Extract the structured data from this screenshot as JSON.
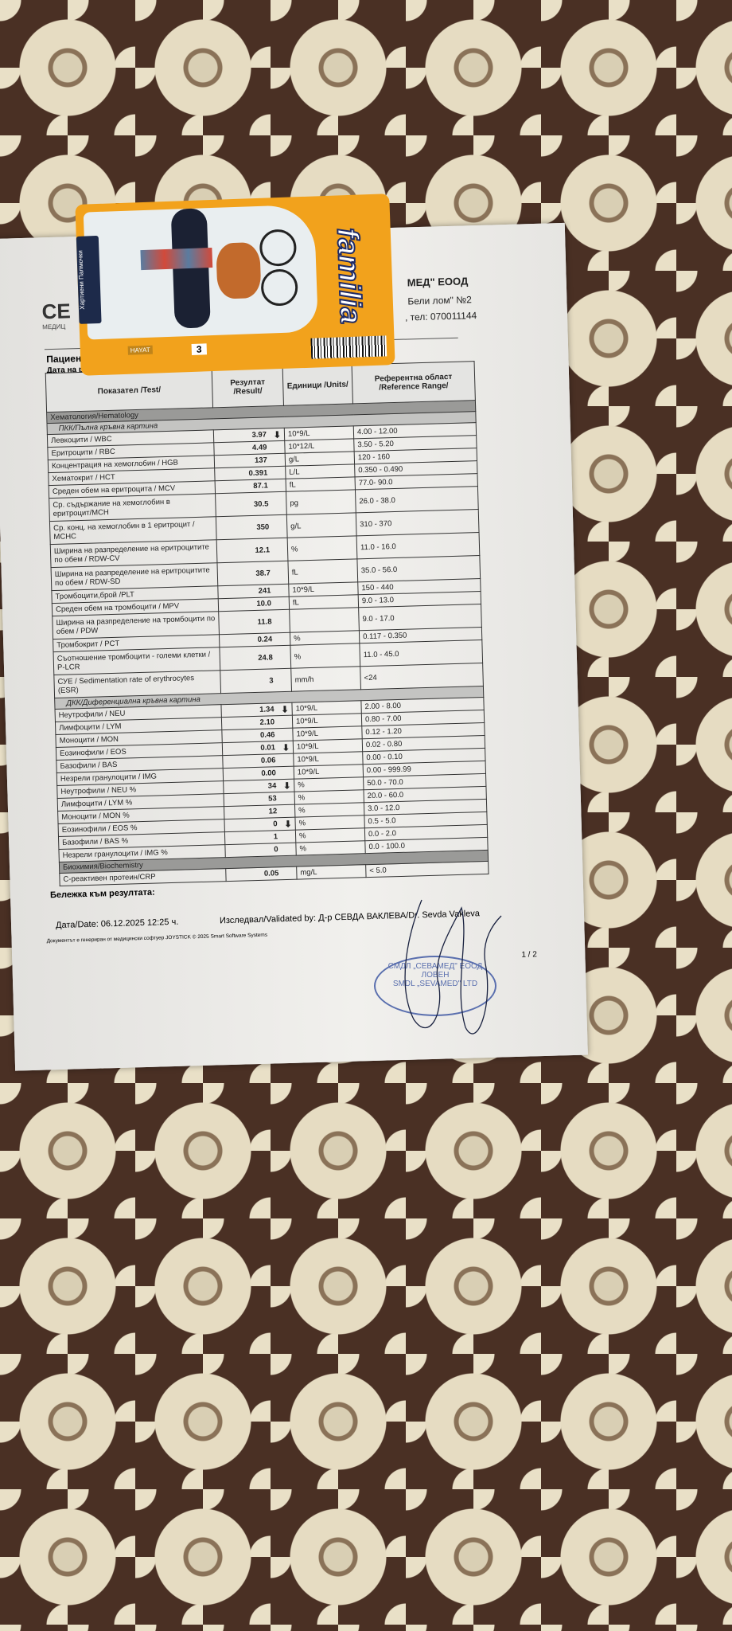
{
  "header": {
    "logo": "СЕ",
    "logo_sub": "МЕДИЦ",
    "company": "МЕД\" ЕООД",
    "address": "Бели лом\" №2",
    "phone": ", тел: 070011144",
    "patient_label": "Пациент",
    "date_label": "Дата на ра"
  },
  "tissue": {
    "brand": "familia",
    "maker": "HAYAT",
    "count": "3",
    "side_text": "Хартиени Палмочки"
  },
  "table": {
    "headers": {
      "test": "Показател /Test/",
      "result": "Резултат /Result/",
      "units": "Единици /Units/",
      "ref": "Референтна област /Reference Range/"
    },
    "sections": [
      {
        "title": "Хематология/Hematology",
        "groups": [
          {
            "title": "ПКК/Пълна кръвна картина",
            "rows": [
              {
                "test": "Левкоцити / WBC",
                "result": "3.97",
                "flag": "low",
                "units": "10*9/L",
                "ref": "4.00 - 12.00"
              },
              {
                "test": "Еритроцити / RBC",
                "result": "4.49",
                "flag": "",
                "units": "10*12/L",
                "ref": "3.50 - 5.20"
              },
              {
                "test": "Концентрация на хемоглобин / HGB",
                "result": "137",
                "flag": "",
                "units": "g/L",
                "ref": "120 - 160"
              },
              {
                "test": "Хематокрит / HCT",
                "result": "0.391",
                "flag": "",
                "units": "L/L",
                "ref": "0.350 - 0.490"
              },
              {
                "test": "Среден обем на еритроцита / MCV",
                "result": "87.1",
                "flag": "",
                "units": "fL",
                "ref": "77.0- 90.0"
              },
              {
                "test": "Ср. съдържание на хемоглобин в еритроцит/MCH",
                "result": "30.5",
                "flag": "",
                "units": "pg",
                "ref": "26.0 - 38.0",
                "double": true
              },
              {
                "test": "Ср. конц. на хемоглобин в 1 еритроцит / MCHC",
                "result": "350",
                "flag": "",
                "units": "g/L",
                "ref": "310 - 370",
                "double": true
              },
              {
                "test": "Ширина на разпределение на еритроцитите по обем / RDW-CV",
                "result": "12.1",
                "flag": "",
                "units": "%",
                "ref": "11.0 - 16.0",
                "double": true
              },
              {
                "test": "Ширина на разпределение на еритроцитите по обем / RDW-SD",
                "result": "38.7",
                "flag": "",
                "units": "fL",
                "ref": "35.0 - 56.0",
                "double": true
              },
              {
                "test": "Тромбоцити,брой /PLT",
                "result": "241",
                "flag": "",
                "units": "10*9/L",
                "ref": "150 - 440"
              },
              {
                "test": "Среден обем на тромбоцити / MPV",
                "result": "10.0",
                "flag": "",
                "units": "fL",
                "ref": "9.0 - 13.0"
              },
              {
                "test": "Ширина на разпределение на тромбоцити по обем / PDW",
                "result": "11.8",
                "flag": "",
                "units": "",
                "ref": "9.0 - 17.0",
                "double": true
              },
              {
                "test": "Тромбокрит / PCT",
                "result": "0.24",
                "flag": "",
                "units": "%",
                "ref": "0.117 - 0.350"
              },
              {
                "test": "Съотношение тромбоцити - големи клетки / P-LCR",
                "result": "24.8",
                "flag": "",
                "units": "%",
                "ref": "11.0 - 45.0",
                "double": true
              },
              {
                "test": "СУЕ / Sedimentation rate of erythrocytes (ESR)",
                "result": "3",
                "flag": "",
                "units": "mm/h",
                "ref": "<24",
                "double": true
              }
            ]
          },
          {
            "title": "ДКК/Диференциална кръвна картина",
            "rows": [
              {
                "test": "Неутрофили / NEU",
                "result": "1.34",
                "flag": "low",
                "units": "10*9/L",
                "ref": "2.00 - 8.00"
              },
              {
                "test": "Лимфоцити / LYM",
                "result": "2.10",
                "flag": "",
                "units": "10*9/L",
                "ref": "0.80 - 7.00"
              },
              {
                "test": "Моноцити / MON",
                "result": "0.46",
                "flag": "",
                "units": "10*9/L",
                "ref": "0.12 - 1.20"
              },
              {
                "test": "Еозинофили / EOS",
                "result": "0.01",
                "flag": "low",
                "units": "10*9/L",
                "ref": "0.02 - 0.80"
              },
              {
                "test": "Базофили / BAS",
                "result": "0.06",
                "flag": "",
                "units": "10*9/L",
                "ref": "0.00 - 0.10"
              },
              {
                "test": "Незрели гранулоцити / IMG",
                "result": "0.00",
                "flag": "",
                "units": "10*9/L",
                "ref": "0.00 - 999.99"
              },
              {
                "test": "Неутрофили / NEU %",
                "result": "34",
                "flag": "low",
                "units": "%",
                "ref": "50.0 - 70.0"
              },
              {
                "test": "Лимфоцити / LYM %",
                "result": "53",
                "flag": "",
                "units": "%",
                "ref": "20.0 - 60.0"
              },
              {
                "test": "Моноцити / MON %",
                "result": "12",
                "flag": "",
                "units": "%",
                "ref": "3.0 - 12.0"
              },
              {
                "test": "Еозинофили / EOS %",
                "result": "0",
                "flag": "low",
                "units": "%",
                "ref": "0.5 - 5.0"
              },
              {
                "test": "Базофили / BAS %",
                "result": "1",
                "flag": "",
                "units": "%",
                "ref": "0.0 - 2.0"
              },
              {
                "test": "Незрели гранулоцити / IMG %",
                "result": "0",
                "flag": "",
                "units": "%",
                "ref": "0.0 - 100.0"
              }
            ]
          }
        ]
      },
      {
        "title": "Биохимия/Biochemistry",
        "groups": [
          {
            "title": "",
            "rows": [
              {
                "test": "С-реактивен протеин/CRP",
                "result": "0.05",
                "flag": "",
                "units": "mg/L",
                "ref": "< 5.0"
              }
            ]
          }
        ]
      }
    ]
  },
  "footer": {
    "note_label": "Бележка към резултата:",
    "date": "Дата/Date: 06.12.2025 12:25 ч.",
    "validated": "Изследвал/Validated by: Д-р СЕВДА ВАКЛЕВА/Dr. Sevda Vakleva",
    "software": "Документът е генериран от медицински софтуер JOYSTICK © 2025 Smart Software Systems",
    "page": "1 / 2"
  },
  "stamp": {
    "top": "СМДЛ „СЕВАМЕД\" ЕООД",
    "middle": "ЛОВЕН",
    "bottom": "SMDL „SEVAMED\" LTD"
  },
  "colors": {
    "paper": "#ecebe8",
    "tissue_orange": "#f2a21c",
    "stamp_blue": "#5a6fae",
    "flag_arrow": "#111111"
  }
}
